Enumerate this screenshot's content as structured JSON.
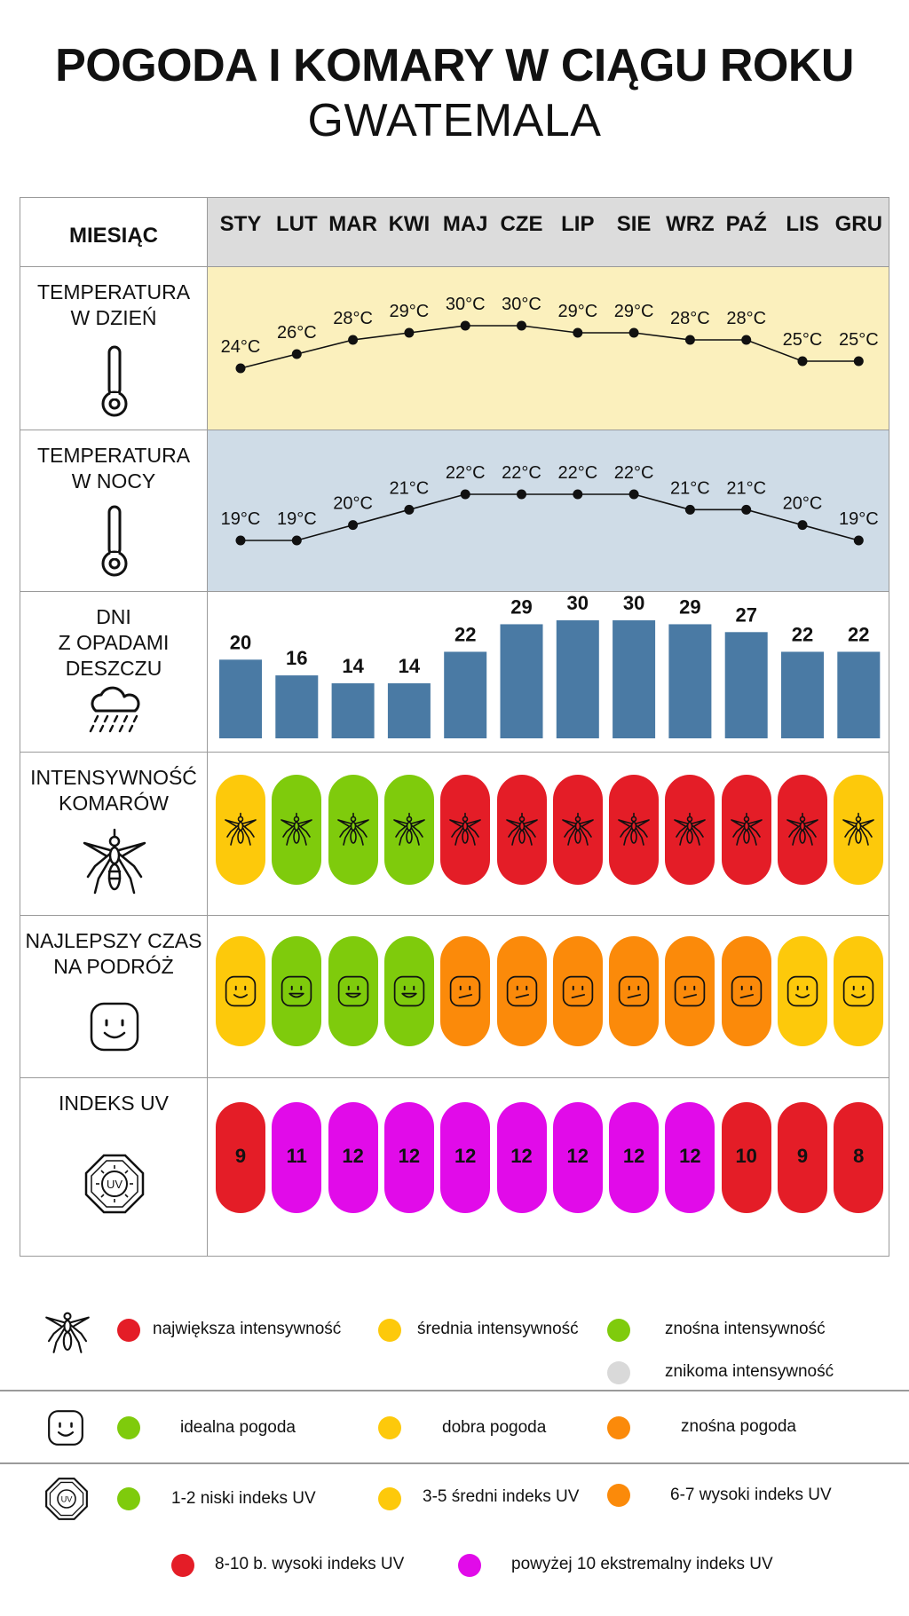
{
  "title": "POGODA I KOMARY W CIĄGU ROKU",
  "subtitle": "GWATEMALA",
  "header": {
    "label": "MIESIĄC"
  },
  "months": [
    "STY",
    "LUT",
    "MAR",
    "KWI",
    "MAJ",
    "CZE",
    "LIP",
    "SIE",
    "WRZ",
    "PAŹ",
    "LIS",
    "GRU"
  ],
  "rows": {
    "day_temp": "TEMPERATURA\nW DZIEŃ",
    "night_temp": "TEMPERATURA\nW NOCY",
    "rain": "DNI\nZ OPADAMI\nDESZCZU",
    "mosquito": "INTENSYWNOŚĆ\nKOMARÓW",
    "travel": "NAJLEPSZY CZAS\nNA PODRÓŻ",
    "uv": "INDEKS UV"
  },
  "icons": {
    "day_temp": "thermometer-icon",
    "night_temp": "thermometer-icon",
    "rain": "rain-cloud-icon",
    "mosquito": "mosquito-icon",
    "travel": "smiley-icon",
    "uv": "uv-sun-icon"
  },
  "colors": {
    "red": "#e41d27",
    "yellow": "#fdc90b",
    "green": "#7fcb0c",
    "orange": "#fb8a0a",
    "magenta": "#e10be9",
    "gray": "#d9d9d9",
    "bar": "#4a7aa4",
    "day_bg": "#fbf0bd",
    "night_bg": "#cfdce7",
    "header_bg": "#dcdcdc"
  },
  "chart_data": [
    {
      "type": "line",
      "title": "TEMPERATURA W DZIEŃ",
      "categories": [
        "STY",
        "LUT",
        "MAR",
        "KWI",
        "MAJ",
        "CZE",
        "LIP",
        "SIE",
        "WRZ",
        "PAŹ",
        "LIS",
        "GRU"
      ],
      "values": [
        24,
        26,
        28,
        29,
        30,
        30,
        29,
        29,
        28,
        28,
        25,
        25
      ],
      "labels": [
        "24°C",
        "26°C",
        "28°C",
        "29°C",
        "30°C",
        "30°C",
        "29°C",
        "29°C",
        "28°C",
        "28°C",
        "25°C",
        "25°C"
      ],
      "unit": "°C"
    },
    {
      "type": "line",
      "title": "TEMPERATURA W NOCY",
      "categories": [
        "STY",
        "LUT",
        "MAR",
        "KWI",
        "MAJ",
        "CZE",
        "LIP",
        "SIE",
        "WRZ",
        "PAŹ",
        "LIS",
        "GRU"
      ],
      "values": [
        19,
        19,
        20,
        21,
        22,
        22,
        22,
        22,
        21,
        21,
        20,
        19
      ],
      "labels": [
        "19°C",
        "19°C",
        "20°C",
        "21°C",
        "22°C",
        "22°C",
        "22°C",
        "22°C",
        "21°C",
        "21°C",
        "20°C",
        "19°C"
      ],
      "unit": "°C"
    },
    {
      "type": "bar",
      "title": "DNI Z OPADAMI DESZCZU",
      "categories": [
        "STY",
        "LUT",
        "MAR",
        "KWI",
        "MAJ",
        "CZE",
        "LIP",
        "SIE",
        "WRZ",
        "PAŹ",
        "LIS",
        "GRU"
      ],
      "values": [
        20,
        16,
        14,
        14,
        22,
        29,
        30,
        30,
        29,
        27,
        22,
        22
      ],
      "ylim": [
        0,
        31
      ]
    },
    {
      "type": "table",
      "title": "INTENSYWNOŚĆ KOMARÓW",
      "categories": [
        "STY",
        "LUT",
        "MAR",
        "KWI",
        "MAJ",
        "CZE",
        "LIP",
        "SIE",
        "WRZ",
        "PAŹ",
        "LIS",
        "GRU"
      ],
      "levels": [
        "yellow",
        "green",
        "green",
        "green",
        "red",
        "red",
        "red",
        "red",
        "red",
        "red",
        "red",
        "yellow"
      ]
    },
    {
      "type": "table",
      "title": "NAJLEPSZY CZAS NA PODRÓŻ",
      "categories": [
        "STY",
        "LUT",
        "MAR",
        "KWI",
        "MAJ",
        "CZE",
        "LIP",
        "SIE",
        "WRZ",
        "PAŹ",
        "LIS",
        "GRU"
      ],
      "levels": [
        "yellow",
        "green",
        "green",
        "green",
        "orange",
        "orange",
        "orange",
        "orange",
        "orange",
        "orange",
        "yellow",
        "yellow"
      ]
    },
    {
      "type": "table",
      "title": "INDEKS UV",
      "categories": [
        "STY",
        "LUT",
        "MAR",
        "KWI",
        "MAJ",
        "CZE",
        "LIP",
        "SIE",
        "WRZ",
        "PAŹ",
        "LIS",
        "GRU"
      ],
      "values": [
        9,
        11,
        12,
        12,
        12,
        12,
        12,
        12,
        12,
        10,
        9,
        8
      ],
      "levels": [
        "red",
        "magenta",
        "magenta",
        "magenta",
        "magenta",
        "magenta",
        "magenta",
        "magenta",
        "magenta",
        "red",
        "red",
        "red"
      ]
    }
  ],
  "legend": {
    "mosquito": [
      {
        "color": "red",
        "label": "największa intensywność"
      },
      {
        "color": "yellow",
        "label": "średnia intensywność"
      },
      {
        "color": "green",
        "label": "znośna intensywność"
      },
      {
        "color": "gray",
        "label": "znikoma intensywność"
      }
    ],
    "weather": [
      {
        "color": "green",
        "label": "idealna pogoda"
      },
      {
        "color": "yellow",
        "label": "dobra pogoda"
      },
      {
        "color": "orange",
        "label": "znośna pogoda"
      }
    ],
    "uv": [
      {
        "color": "green",
        "label": "1-2 niski indeks UV"
      },
      {
        "color": "yellow",
        "label": "3-5 średni indeks UV"
      },
      {
        "color": "orange",
        "label": "6-7 wysoki indeks UV"
      },
      {
        "color": "red",
        "label": "8-10 b. wysoki indeks UV"
      },
      {
        "color": "magenta",
        "label": "powyżej 10 ekstremalny indeks UV"
      }
    ]
  }
}
